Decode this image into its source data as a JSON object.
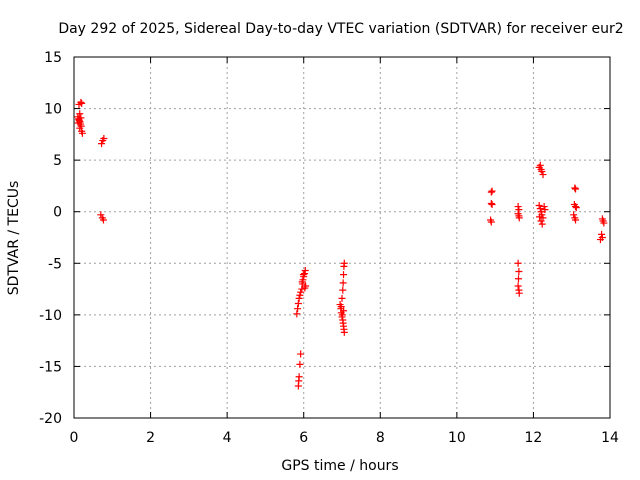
{
  "chart_data": {
    "type": "scatter",
    "title": "Day 292 of 2025, Sidereal Day-to-day VTEC variation (SDTVAR) for receiver eur2",
    "xlabel": "GPS time / hours",
    "ylabel": "SDTVAR / TECUs",
    "xlim": [
      0,
      14
    ],
    "ylim": [
      -20,
      15
    ],
    "x_ticks": [
      0,
      2,
      4,
      6,
      8,
      10,
      12,
      14
    ],
    "y_ticks": [
      -20,
      -15,
      -10,
      -5,
      0,
      5,
      10,
      15
    ],
    "x_tick_labels": [
      "0",
      "2",
      "4",
      "6",
      "8",
      "10",
      "12",
      "14"
    ],
    "y_tick_labels": [
      "-20",
      "-15",
      "-10",
      "-5",
      "0",
      "5",
      "10",
      "15"
    ],
    "grid": true,
    "marker": "+",
    "color": "#ff0000",
    "series": [
      {
        "name": "eur2",
        "points": [
          [
            0.13,
            10.4
          ],
          [
            0.18,
            10.6
          ],
          [
            0.2,
            10.5
          ],
          [
            0.15,
            9.5
          ],
          [
            0.1,
            9.2
          ],
          [
            0.12,
            9.0
          ],
          [
            0.14,
            8.8
          ],
          [
            0.16,
            8.7
          ],
          [
            0.17,
            8.5
          ],
          [
            0.19,
            8.3
          ],
          [
            0.11,
            8.6
          ],
          [
            0.15,
            8.1
          ],
          [
            0.2,
            7.8
          ],
          [
            0.22,
            7.6
          ],
          [
            0.18,
            9.1
          ],
          [
            0.13,
            8.9
          ],
          [
            0.72,
            6.6
          ],
          [
            0.75,
            6.9
          ],
          [
            0.78,
            7.1
          ],
          [
            0.7,
            -0.3
          ],
          [
            0.74,
            -0.6
          ],
          [
            0.77,
            -0.8
          ],
          [
            5.82,
            -9.9
          ],
          [
            5.84,
            -9.4
          ],
          [
            5.86,
            -8.9
          ],
          [
            5.88,
            -8.4
          ],
          [
            5.9,
            -8.1
          ],
          [
            5.92,
            -7.8
          ],
          [
            5.95,
            -7.5
          ],
          [
            5.97,
            -7.0
          ],
          [
            5.98,
            -6.6
          ],
          [
            6.0,
            -6.3
          ],
          [
            6.02,
            -6.0
          ],
          [
            6.04,
            -5.7
          ],
          [
            6.05,
            -7.2
          ],
          [
            6.03,
            -7.4
          ],
          [
            5.99,
            -6.1
          ],
          [
            5.96,
            -6.8
          ],
          [
            5.92,
            -13.8
          ],
          [
            5.9,
            -14.8
          ],
          [
            5.88,
            -16.0
          ],
          [
            5.87,
            -16.4
          ],
          [
            5.86,
            -16.9
          ],
          [
            6.95,
            -9.0
          ],
          [
            6.97,
            -9.4
          ],
          [
            6.98,
            -9.8
          ],
          [
            7.0,
            -10.2
          ],
          [
            7.02,
            -10.5
          ],
          [
            7.03,
            -10.8
          ],
          [
            7.04,
            -11.1
          ],
          [
            7.05,
            -11.4
          ],
          [
            7.06,
            -11.7
          ],
          [
            7.0,
            -8.4
          ],
          [
            7.02,
            -7.6
          ],
          [
            7.03,
            -6.9
          ],
          [
            7.04,
            -6.1
          ],
          [
            7.05,
            -5.3
          ],
          [
            7.06,
            -5.0
          ],
          [
            6.98,
            -9.2
          ],
          [
            7.01,
            -10.0
          ],
          [
            7.04,
            -9.6
          ],
          [
            10.9,
            1.9
          ],
          [
            10.92,
            2.0
          ],
          [
            10.9,
            0.8
          ],
          [
            10.92,
            0.7
          ],
          [
            10.88,
            -0.8
          ],
          [
            10.9,
            -1.0
          ],
          [
            11.6,
            0.5
          ],
          [
            11.62,
            0.2
          ],
          [
            11.6,
            -0.2
          ],
          [
            11.62,
            -0.4
          ],
          [
            11.63,
            -0.6
          ],
          [
            11.6,
            -5.0
          ],
          [
            11.62,
            -5.8
          ],
          [
            11.61,
            -6.5
          ],
          [
            11.6,
            -7.2
          ],
          [
            11.62,
            -7.6
          ],
          [
            11.63,
            -7.9
          ],
          [
            12.15,
            4.3
          ],
          [
            12.18,
            4.5
          ],
          [
            12.2,
            4.1
          ],
          [
            12.22,
            3.9
          ],
          [
            12.25,
            3.6
          ],
          [
            12.15,
            0.6
          ],
          [
            12.18,
            0.3
          ],
          [
            12.2,
            0.0
          ],
          [
            12.22,
            -0.3
          ],
          [
            12.25,
            -0.6
          ],
          [
            12.2,
            -0.9
          ],
          [
            12.23,
            -1.2
          ],
          [
            12.28,
            0.5
          ],
          [
            12.3,
            0.2
          ],
          [
            12.16,
            -0.5
          ],
          [
            13.08,
            2.3
          ],
          [
            13.1,
            2.2
          ],
          [
            13.07,
            0.7
          ],
          [
            13.1,
            0.5
          ],
          [
            13.12,
            0.4
          ],
          [
            13.05,
            -0.3
          ],
          [
            13.08,
            -0.6
          ],
          [
            13.1,
            -0.8
          ],
          [
            13.8,
            -0.7
          ],
          [
            13.82,
            -0.9
          ],
          [
            13.84,
            -1.1
          ],
          [
            13.78,
            -2.2
          ],
          [
            13.8,
            -2.5
          ],
          [
            13.75,
            -2.7
          ]
        ]
      }
    ]
  }
}
